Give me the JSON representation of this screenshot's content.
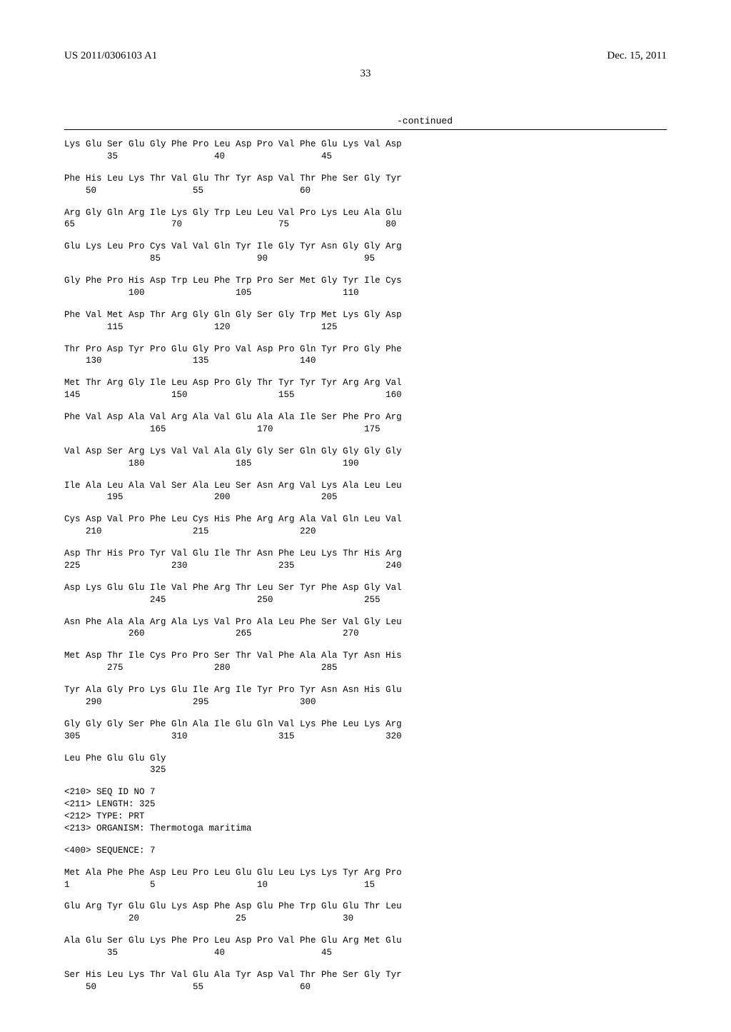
{
  "header": {
    "patent_id": "US 2011/0306103 A1",
    "date": "Dec. 15, 2011",
    "page_number": "33"
  },
  "continued_label": "-continued",
  "sequence_font": {
    "family": "Courier New",
    "size_pt": 12.5,
    "color": "#000000"
  },
  "layout": {
    "tokens_per_row": 16,
    "token_col_width_chars": 4
  },
  "seq6_blocks": [
    {
      "aa": [
        "Lys",
        "Glu",
        "Ser",
        "Glu",
        "Gly",
        "Phe",
        "Pro",
        "Leu",
        "Asp",
        "Pro",
        "Val",
        "Phe",
        "Glu",
        "Lys",
        "Val",
        "Asp"
      ],
      "nums": [
        "",
        "",
        "35",
        "",
        "",
        "",
        "",
        "40",
        "",
        "",
        "",
        "",
        "45",
        "",
        "",
        ""
      ]
    },
    {
      "aa": [
        "Phe",
        "His",
        "Leu",
        "Lys",
        "Thr",
        "Val",
        "Glu",
        "Thr",
        "Tyr",
        "Asp",
        "Val",
        "Thr",
        "Phe",
        "Ser",
        "Gly",
        "Tyr"
      ],
      "nums": [
        "",
        "50",
        "",
        "",
        "",
        "",
        "55",
        "",
        "",
        "",
        "",
        "60",
        "",
        "",
        "",
        ""
      ]
    },
    {
      "aa": [
        "Arg",
        "Gly",
        "Gln",
        "Arg",
        "Ile",
        "Lys",
        "Gly",
        "Trp",
        "Leu",
        "Leu",
        "Val",
        "Pro",
        "Lys",
        "Leu",
        "Ala",
        "Glu"
      ],
      "nums": [
        "65",
        "",
        "",
        "",
        "",
        "70",
        "",
        "",
        "",
        "",
        "75",
        "",
        "",
        "",
        "",
        "80"
      ]
    },
    {
      "aa": [
        "Glu",
        "Lys",
        "Leu",
        "Pro",
        "Cys",
        "Val",
        "Val",
        "Gln",
        "Tyr",
        "Ile",
        "Gly",
        "Tyr",
        "Asn",
        "Gly",
        "Gly",
        "Arg"
      ],
      "nums": [
        "",
        "",
        "",
        "",
        "85",
        "",
        "",
        "",
        "",
        "90",
        "",
        "",
        "",
        "",
        "95",
        ""
      ]
    },
    {
      "aa": [
        "Gly",
        "Phe",
        "Pro",
        "His",
        "Asp",
        "Trp",
        "Leu",
        "Phe",
        "Trp",
        "Pro",
        "Ser",
        "Met",
        "Gly",
        "Tyr",
        "Ile",
        "Cys"
      ],
      "nums": [
        "",
        "",
        "",
        "100",
        "",
        "",
        "",
        "",
        "105",
        "",
        "",
        "",
        "",
        "110",
        "",
        ""
      ]
    },
    {
      "aa": [
        "Phe",
        "Val",
        "Met",
        "Asp",
        "Thr",
        "Arg",
        "Gly",
        "Gln",
        "Gly",
        "Ser",
        "Gly",
        "Trp",
        "Met",
        "Lys",
        "Gly",
        "Asp"
      ],
      "nums": [
        "",
        "",
        "115",
        "",
        "",
        "",
        "",
        "120",
        "",
        "",
        "",
        "",
        "125",
        "",
        "",
        ""
      ]
    },
    {
      "aa": [
        "Thr",
        "Pro",
        "Asp",
        "Tyr",
        "Pro",
        "Glu",
        "Gly",
        "Pro",
        "Val",
        "Asp",
        "Pro",
        "Gln",
        "Tyr",
        "Pro",
        "Gly",
        "Phe"
      ],
      "nums": [
        "",
        "130",
        "",
        "",
        "",
        "",
        "135",
        "",
        "",
        "",
        "",
        "140",
        "",
        "",
        "",
        ""
      ]
    },
    {
      "aa": [
        "Met",
        "Thr",
        "Arg",
        "Gly",
        "Ile",
        "Leu",
        "Asp",
        "Pro",
        "Gly",
        "Thr",
        "Tyr",
        "Tyr",
        "Tyr",
        "Arg",
        "Arg",
        "Val"
      ],
      "nums": [
        "145",
        "",
        "",
        "",
        "",
        "150",
        "",
        "",
        "",
        "",
        "155",
        "",
        "",
        "",
        "",
        "160"
      ]
    },
    {
      "aa": [
        "Phe",
        "Val",
        "Asp",
        "Ala",
        "Val",
        "Arg",
        "Ala",
        "Val",
        "Glu",
        "Ala",
        "Ala",
        "Ile",
        "Ser",
        "Phe",
        "Pro",
        "Arg"
      ],
      "nums": [
        "",
        "",
        "",
        "",
        "165",
        "",
        "",
        "",
        "",
        "170",
        "",
        "",
        "",
        "",
        "175",
        ""
      ]
    },
    {
      "aa": [
        "Val",
        "Asp",
        "Ser",
        "Arg",
        "Lys",
        "Val",
        "Val",
        "Ala",
        "Gly",
        "Gly",
        "Ser",
        "Gln",
        "Gly",
        "Gly",
        "Gly",
        "Gly"
      ],
      "nums": [
        "",
        "",
        "",
        "180",
        "",
        "",
        "",
        "",
        "185",
        "",
        "",
        "",
        "",
        "190",
        "",
        ""
      ]
    },
    {
      "aa": [
        "Ile",
        "Ala",
        "Leu",
        "Ala",
        "Val",
        "Ser",
        "Ala",
        "Leu",
        "Ser",
        "Asn",
        "Arg",
        "Val",
        "Lys",
        "Ala",
        "Leu",
        "Leu"
      ],
      "nums": [
        "",
        "",
        "195",
        "",
        "",
        "",
        "",
        "200",
        "",
        "",
        "",
        "",
        "205",
        "",
        "",
        ""
      ]
    },
    {
      "aa": [
        "Cys",
        "Asp",
        "Val",
        "Pro",
        "Phe",
        "Leu",
        "Cys",
        "His",
        "Phe",
        "Arg",
        "Arg",
        "Ala",
        "Val",
        "Gln",
        "Leu",
        "Val"
      ],
      "nums": [
        "",
        "210",
        "",
        "",
        "",
        "",
        "215",
        "",
        "",
        "",
        "",
        "220",
        "",
        "",
        "",
        ""
      ]
    },
    {
      "aa": [
        "Asp",
        "Thr",
        "His",
        "Pro",
        "Tyr",
        "Val",
        "Glu",
        "Ile",
        "Thr",
        "Asn",
        "Phe",
        "Leu",
        "Lys",
        "Thr",
        "His",
        "Arg"
      ],
      "nums": [
        "225",
        "",
        "",
        "",
        "",
        "230",
        "",
        "",
        "",
        "",
        "235",
        "",
        "",
        "",
        "",
        "240"
      ]
    },
    {
      "aa": [
        "Asp",
        "Lys",
        "Glu",
        "Glu",
        "Ile",
        "Val",
        "Phe",
        "Arg",
        "Thr",
        "Leu",
        "Ser",
        "Tyr",
        "Phe",
        "Asp",
        "Gly",
        "Val"
      ],
      "nums": [
        "",
        "",
        "",
        "",
        "245",
        "",
        "",
        "",
        "",
        "250",
        "",
        "",
        "",
        "",
        "255",
        ""
      ]
    },
    {
      "aa": [
        "Asn",
        "Phe",
        "Ala",
        "Ala",
        "Arg",
        "Ala",
        "Lys",
        "Val",
        "Pro",
        "Ala",
        "Leu",
        "Phe",
        "Ser",
        "Val",
        "Gly",
        "Leu"
      ],
      "nums": [
        "",
        "",
        "",
        "260",
        "",
        "",
        "",
        "",
        "265",
        "",
        "",
        "",
        "",
        "270",
        "",
        ""
      ]
    },
    {
      "aa": [
        "Met",
        "Asp",
        "Thr",
        "Ile",
        "Cys",
        "Pro",
        "Pro",
        "Ser",
        "Thr",
        "Val",
        "Phe",
        "Ala",
        "Ala",
        "Tyr",
        "Asn",
        "His"
      ],
      "nums": [
        "",
        "",
        "275",
        "",
        "",
        "",
        "",
        "280",
        "",
        "",
        "",
        "",
        "285",
        "",
        "",
        ""
      ]
    },
    {
      "aa": [
        "Tyr",
        "Ala",
        "Gly",
        "Pro",
        "Lys",
        "Glu",
        "Ile",
        "Arg",
        "Ile",
        "Tyr",
        "Pro",
        "Tyr",
        "Asn",
        "Asn",
        "His",
        "Glu"
      ],
      "nums": [
        "",
        "290",
        "",
        "",
        "",
        "",
        "295",
        "",
        "",
        "",
        "",
        "300",
        "",
        "",
        "",
        ""
      ]
    },
    {
      "aa": [
        "Gly",
        "Gly",
        "Gly",
        "Ser",
        "Phe",
        "Gln",
        "Ala",
        "Ile",
        "Glu",
        "Gln",
        "Val",
        "Lys",
        "Phe",
        "Leu",
        "Lys",
        "Arg"
      ],
      "nums": [
        "305",
        "",
        "",
        "",
        "",
        "310",
        "",
        "",
        "",
        "",
        "315",
        "",
        "",
        "",
        "",
        "320"
      ]
    },
    {
      "aa": [
        "Leu",
        "Phe",
        "Glu",
        "Glu",
        "Gly",
        "",
        "",
        "",
        "",
        "",
        "",
        "",
        "",
        "",
        "",
        ""
      ],
      "nums": [
        "",
        "",
        "",
        "",
        "325",
        "",
        "",
        "",
        "",
        "",
        "",
        "",
        "",
        "",
        "",
        ""
      ]
    }
  ],
  "seq7_header": {
    "lines": [
      "<210> SEQ ID NO 7",
      "<211> LENGTH: 325",
      "<212> TYPE: PRT",
      "<213> ORGANISM: Thermotoga maritima"
    ],
    "sequence_line": "<400> SEQUENCE: 7"
  },
  "seq7_blocks": [
    {
      "aa": [
        "Met",
        "Ala",
        "Phe",
        "Phe",
        "Asp",
        "Leu",
        "Pro",
        "Leu",
        "Glu",
        "Glu",
        "Leu",
        "Lys",
        "Lys",
        "Tyr",
        "Arg",
        "Pro"
      ],
      "nums": [
        "1",
        "",
        "",
        "",
        "5",
        "",
        "",
        "",
        "",
        "10",
        "",
        "",
        "",
        "",
        "15",
        ""
      ]
    },
    {
      "aa": [
        "Glu",
        "Arg",
        "Tyr",
        "Glu",
        "Glu",
        "Lys",
        "Asp",
        "Phe",
        "Asp",
        "Glu",
        "Phe",
        "Trp",
        "Glu",
        "Glu",
        "Thr",
        "Leu"
      ],
      "nums": [
        "",
        "",
        "",
        "20",
        "",
        "",
        "",
        "",
        "25",
        "",
        "",
        "",
        "",
        "30",
        "",
        ""
      ]
    },
    {
      "aa": [
        "Ala",
        "Glu",
        "Ser",
        "Glu",
        "Lys",
        "Phe",
        "Pro",
        "Leu",
        "Asp",
        "Pro",
        "Val",
        "Phe",
        "Glu",
        "Arg",
        "Met",
        "Glu"
      ],
      "nums": [
        "",
        "",
        "35",
        "",
        "",
        "",
        "",
        "40",
        "",
        "",
        "",
        "",
        "45",
        "",
        "",
        ""
      ]
    },
    {
      "aa": [
        "Ser",
        "His",
        "Leu",
        "Lys",
        "Thr",
        "Val",
        "Glu",
        "Ala",
        "Tyr",
        "Asp",
        "Val",
        "Thr",
        "Phe",
        "Ser",
        "Gly",
        "Tyr"
      ],
      "nums": [
        "",
        "50",
        "",
        "",
        "",
        "",
        "55",
        "",
        "",
        "",
        "",
        "60",
        "",
        "",
        "",
        ""
      ]
    }
  ]
}
